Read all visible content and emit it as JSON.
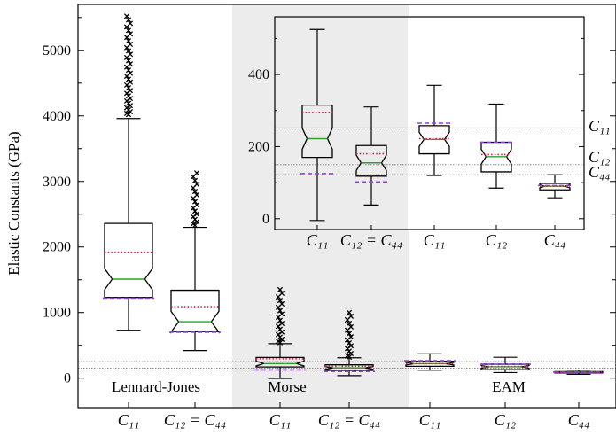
{
  "chart_data": {
    "type": "box",
    "ylabel": "Elastic Constants (GPa)",
    "ylim": [
      -450,
      5700
    ],
    "yticks": [
      0,
      1000,
      2000,
      3000,
      4000,
      5000
    ],
    "groups": [
      {
        "name": "Lennard-Jones",
        "shaded": false
      },
      {
        "name": "Morse",
        "shaded": true
      },
      {
        "name": "EAM",
        "shaded": false
      }
    ],
    "boxes": [
      {
        "label": "C11",
        "label_display": "C₁₁",
        "group": "Lennard-Jones",
        "whisker_low": 730,
        "q1": 1230,
        "median": 1510,
        "q3": 2360,
        "whisker_high": 3960,
        "mean": 1920,
        "dft": 1220,
        "outliers_range": [
          4020,
          5520
        ]
      },
      {
        "label": "C12 = C44",
        "label_display": "C₁₂ = C₄₄",
        "group": "Lennard-Jones",
        "whisker_low": 420,
        "q1": 710,
        "median": 860,
        "q3": 1340,
        "whisker_high": 2300,
        "mean": 1090,
        "dft": 700,
        "outliers_range": [
          2330,
          3130
        ]
      },
      {
        "label": "C11",
        "label_display": "C₁₁",
        "group": "Morse",
        "whisker_low": -5,
        "q1": 170,
        "median": 222,
        "q3": 315,
        "whisker_high": 525,
        "mean": 295,
        "dft": 125,
        "outliers_range": [
          540,
          1350
        ]
      },
      {
        "label": "C12 = C44",
        "label_display": "C₁₂ = C₄₄",
        "group": "Morse",
        "whisker_low": 38,
        "q1": 118,
        "median": 155,
        "q3": 203,
        "whisker_high": 310,
        "mean": 180,
        "dft": 102,
        "outliers_range": [
          320,
          1000
        ]
      },
      {
        "label": "C11",
        "label_display": "C₁₁",
        "group": "EAM",
        "whisker_low": 120,
        "q1": 180,
        "median": 220,
        "q3": 258,
        "whisker_high": 370,
        "mean": 222,
        "dft": 265,
        "outliers_range": null
      },
      {
        "label": "C12",
        "label_display": "C₁₂",
        "group": "EAM",
        "whisker_low": 85,
        "q1": 130,
        "median": 172,
        "q3": 212,
        "whisker_high": 318,
        "mean": 178,
        "dft": 212,
        "outliers_range": null
      },
      {
        "label": "C44",
        "label_display": "C₄₄",
        "group": "EAM",
        "whisker_low": 58,
        "q1": 80,
        "median": 90,
        "q3": 98,
        "whisker_high": 122,
        "mean": 90,
        "dft": 92,
        "outliers_range": null
      }
    ],
    "reference_lines": [
      {
        "label": "C11",
        "label_display": "C₁₁",
        "value": 252
      },
      {
        "label": "C12",
        "label_display": "C₁₂",
        "value": 150
      },
      {
        "label": "C44",
        "label_display": "C₄₄",
        "value": 122
      }
    ],
    "inset": {
      "ylim": [
        -30,
        560
      ],
      "yticks": [
        0,
        200,
        400
      ],
      "shaded_region": "Morse",
      "boxes_shown": "all Morse and EAM boxes"
    },
    "legend_markers": {
      "median": "solid green line",
      "mean": "dotted red line",
      "dft": "dashed purple line",
      "outliers": "x markers",
      "reference": "dotted gray lines"
    },
    "colors": {
      "median": "#2ca02c",
      "mean": "#e8174b",
      "dft": "#9b3de0",
      "shade": "#ececec",
      "reference": "#7a7a7a"
    }
  }
}
